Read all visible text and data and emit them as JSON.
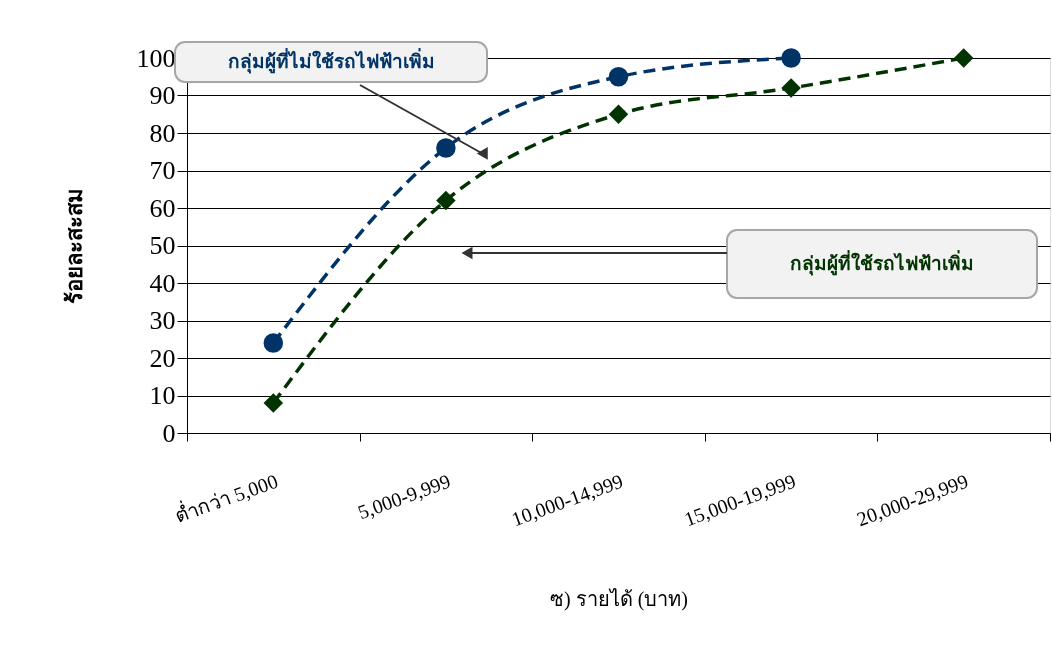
{
  "chart_data": {
    "type": "line",
    "xlabel": "ซ) รายได้ (บาท)",
    "ylabel": "ร้อยละสะสม",
    "categories": [
      "ต่ำกว่า 5,000",
      "5,000-9,999",
      "10,000-14,999",
      "15,000-19,999",
      "20,000-29,999"
    ],
    "series": [
      {
        "name": "กลุ่มผู้ที่ไม่ใช้รถไฟฟ้าเพิ่ม",
        "color": "#003366",
        "values": [
          24,
          76,
          95,
          100,
          null
        ],
        "marker": "circle",
        "line_style": "dashed"
      },
      {
        "name": "กลุ่มผู้ที่ใช้รถไฟฟ้าเพิ่ม",
        "color": "#003300",
        "values": [
          8,
          62,
          85,
          92,
          100
        ],
        "marker": "diamond",
        "line_style": "dashed"
      }
    ],
    "ylim": [
      0,
      100
    ],
    "yticks": [
      0,
      10,
      20,
      30,
      40,
      50,
      60,
      70,
      80,
      90,
      100
    ],
    "grid": "y",
    "legend": false
  }
}
